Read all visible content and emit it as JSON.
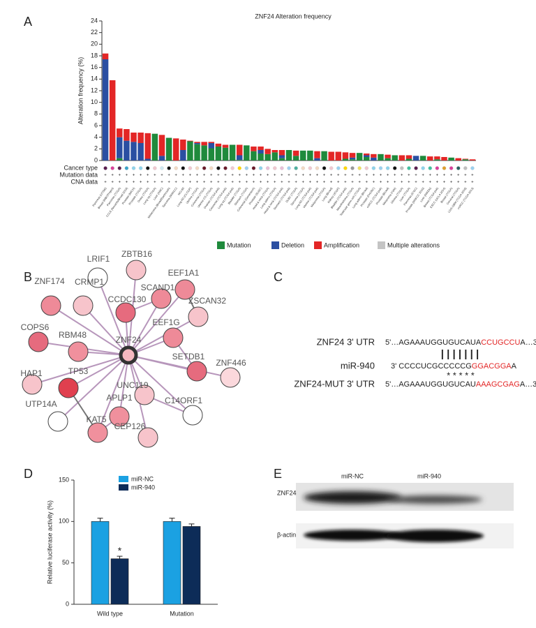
{
  "panels": [
    "A",
    "B",
    "C",
    "D",
    "E"
  ],
  "chart_data": [
    {
      "type": "stacked-bar",
      "title": "ZNF24 Alteration frequency",
      "y_label": "Alteration frequency (%)",
      "row_labels": [
        "Cancer type",
        "Mutation data",
        "CNA data"
      ],
      "categories": [
        "Pancreas (UTSW)",
        "Breast (MBCProject)",
        "Pancreas (TCGA)",
        "CCLE (Novartis/Broad 2019)",
        "Prostate (MICH)",
        "Prostate (TCGA)",
        "Ovary (TCGA)",
        "Lung sq (TCGA)",
        "Liver (AMC)",
        "Melanoma (Broad/Dartmouth)",
        "Sarcoma (MSKCC)",
        "NCI-60",
        "Lung AD (CLCGP)",
        "Uterine (TCGA)",
        "Colorectal (TCGA)",
        "Uterine CS (TCGA)",
        "Ovarian (TCGA pub)",
        "Colorectal (TCGA pub)",
        "Lung sq (TCGA pub)",
        "Bladder (TCGA)",
        "Stomach (TCGA)",
        "Colorectal (Genentech)",
        "Prostate (SU2C)",
        "Head & neck (TCGA)",
        "Lung adeno (TCGA)",
        "Head & neck (TCGA pub)",
        "Stomach (TCGA pub)",
        "DLBC (TCGA)",
        "Sarcoma (TCGA)",
        "Lung AD (TCGA pub)",
        "Uterine (TCGA pub)",
        "Melanoma (TCGA)",
        "Lung (Broad)",
        "Kidney (JCGP)",
        "Bladder (TCGA pub)",
        "Mesothelioma (TCGA)",
        "Testicular germ cell (TCGA)",
        "Lung adeno (Broad)",
        "Prostate (FHCRC)",
        "ccRCC (TCGA pub)",
        "Prostate (Broad)",
        "Melanoma (Yale)",
        "Glioma (TCGA)",
        "Liver (TCGA)",
        "Pancreas (ICGC)",
        "Prostate (MSKCC 2010)",
        "Liver (RIKEN)",
        "Breast (TCGA pub)",
        "ESCC (UCLA 2014)",
        "Breast (TCGA)",
        "Cervical (TCGA)",
        "LGG-GBM (TCGA 2016)",
        "ccRCC (TCGA 2013)"
      ],
      "cancer_type_colors": [
        "#5a1f4f",
        "#d9419a",
        "#5a1f4f",
        "#3aa3c9",
        "#8fd3ea",
        "#8fd3ea",
        "#111111",
        "#f0c8d0",
        "#cfe8f0",
        "#111111",
        "#f2d9c4",
        "#111111",
        "#f0c8d0",
        "#f2d9c4",
        "#6a1a2a",
        "#f2d9c4",
        "#111111",
        "#6a1a2a",
        "#f0c8d0",
        "#ffd700",
        "#a0d0f0",
        "#6a1a2a",
        "#8fd3ea",
        "#e8c0d8",
        "#f0c8d0",
        "#e8c0d8",
        "#a0d0f0",
        "#50b0a0",
        "#f2d9c4",
        "#f0c8d0",
        "#f2d9c4",
        "#111111",
        "#f0c8d0",
        "#9bd1ef",
        "#ffd700",
        "#999999",
        "#f0e060",
        "#f0c8d0",
        "#8fd3ea",
        "#9bd1ef",
        "#8fd3ea",
        "#111111",
        "#c0c0c0",
        "#40c0a0",
        "#5a1f4f",
        "#8fd3ea",
        "#40c0a0",
        "#d9419a",
        "#e0a030",
        "#d9419a",
        "#2a6060",
        "#c0c0c0",
        "#9bd1ef"
      ],
      "mutation_data": [
        "+",
        "+",
        "+",
        "+",
        "+",
        "+",
        "+",
        "+",
        "+",
        "+",
        "+",
        "+",
        "+",
        "+",
        "+",
        "+",
        "+",
        "+",
        "+",
        "+",
        "+",
        "+",
        "+",
        "+",
        "+",
        "+",
        "+",
        "+",
        "+",
        "+",
        "+",
        "+",
        "+",
        "+",
        "+",
        "+",
        "+",
        "+",
        "+",
        "+",
        "+",
        "+",
        "+",
        "+",
        "+",
        "+",
        "+",
        "+",
        "+",
        "+",
        "+",
        "+",
        "+"
      ],
      "cna_data": [
        "+",
        "+",
        "+",
        "+",
        "+",
        "+",
        "+",
        "+",
        "+",
        "+",
        "+",
        "+",
        "+",
        "+",
        "+",
        "+",
        "+",
        "+",
        "+",
        "+",
        "+",
        "+",
        "+",
        "+",
        "+",
        "+",
        "+",
        "+",
        "+",
        "+",
        "+",
        "+",
        "+",
        "+",
        "+",
        "+",
        "+",
        "+",
        "+",
        "+",
        "+",
        "+",
        "+",
        "+",
        "+",
        "+",
        "+",
        "+",
        "+",
        "+",
        "+",
        "+",
        "+"
      ],
      "series": [
        {
          "name": "Mutation",
          "color": "#1f8a3c",
          "values": [
            0,
            0,
            0.4,
            0,
            0,
            0,
            0,
            4.6,
            0,
            3.9,
            0,
            0,
            3.3,
            2.8,
            2.6,
            2.1,
            2.4,
            2.2,
            2.7,
            0.1,
            2.6,
            1.6,
            1.2,
            1.1,
            1.4,
            0.4,
            1.8,
            0.8,
            1.7,
            1.7,
            0,
            1.6,
            0,
            0,
            0.3,
            0.2,
            1.3,
            0.6,
            0,
            1.1,
            0.4,
            0.9,
            0,
            0.3,
            0,
            0.8,
            0,
            0.2,
            0,
            0.5,
            0,
            0.2,
            0
          ]
        },
        {
          "name": "Deletion",
          "color": "#2b4fa2",
          "values": [
            17.4,
            0,
            3.6,
            3.4,
            3.2,
            3.0,
            0.3,
            0,
            0.8,
            0,
            0,
            1.8,
            0,
            0.2,
            0,
            0.9,
            0,
            0,
            0,
            0.8,
            0,
            0,
            0.6,
            0,
            0,
            0.5,
            0,
            0,
            0,
            0,
            0.4,
            0,
            0,
            0,
            0,
            0.3,
            0,
            0.3,
            0.5,
            0,
            0,
            0,
            0,
            0,
            0.8,
            0,
            0,
            0,
            0,
            0,
            0,
            0,
            0
          ]
        },
        {
          "name": "Amplification",
          "color": "#e32626",
          "values": [
            1.0,
            13.8,
            1.5,
            2.0,
            1.6,
            1.8,
            4.4,
            0,
            3.6,
            0,
            3.8,
            1.8,
            0.1,
            0.2,
            0.6,
            0.2,
            0.5,
            0.5,
            0,
            1.8,
            0,
            0.8,
            0.6,
            0.9,
            0.4,
            0.9,
            0,
            0.9,
            0,
            0,
            1.2,
            0,
            1.5,
            1.5,
            1.1,
            0.8,
            0,
            0.3,
            0.6,
            0,
            0.6,
            0,
            0.9,
            0.6,
            0,
            0,
            0.7,
            0.5,
            0.6,
            0,
            0.4,
            0.1,
            0.2
          ]
        },
        {
          "name": "Multiple alterations",
          "color": "#c4c4c4",
          "values": [
            0,
            0,
            0,
            0,
            0,
            0,
            0,
            0,
            0,
            0,
            0,
            0,
            0,
            0,
            0,
            0,
            0,
            0,
            0,
            0,
            0,
            0,
            0,
            0,
            0,
            0,
            0,
            0,
            0,
            0,
            0,
            0,
            0,
            0,
            0,
            0,
            0,
            0,
            0,
            0,
            0,
            0,
            0,
            0,
            0,
            0,
            0,
            0,
            0,
            0,
            0,
            0,
            0
          ]
        }
      ],
      "ylim": [
        0,
        24
      ],
      "yticks": [
        0,
        2,
        4,
        6,
        8,
        10,
        12,
        14,
        16,
        18,
        20,
        22,
        24
      ]
    },
    {
      "type": "bar",
      "y_label": "Relative luciferase activity (%)",
      "categories": [
        "Wild type",
        "Mutation"
      ],
      "series": [
        {
          "name": "miR-NC",
          "color": "#1ba1e2",
          "values": [
            100,
            100
          ],
          "errors": [
            4,
            4
          ]
        },
        {
          "name": "miR-940",
          "color": "#0d2c58",
          "values": [
            55,
            94
          ],
          "errors": [
            3,
            3
          ]
        }
      ],
      "annotation": "*",
      "ylim": [
        0,
        150
      ],
      "yticks": [
        0,
        50,
        100,
        150
      ]
    }
  ],
  "network": {
    "hub": {
      "label": "ZNF24",
      "color": "#f6b8c0"
    },
    "nodes": [
      {
        "label": "LRIF1",
        "color": "#ffffff"
      },
      {
        "label": "ZBTB16",
        "color": "#f7c4cb"
      },
      {
        "label": "EEF1A1",
        "color": "#ee8a98"
      },
      {
        "label": "ZNF174",
        "color": "#ee8a98"
      },
      {
        "label": "CRMP1",
        "color": "#f7c4cb"
      },
      {
        "label": "CCDC130",
        "color": "#e66b7e"
      },
      {
        "label": "SCAND1",
        "color": "#ee8a98"
      },
      {
        "label": "ZSCAN32",
        "color": "#f7c4cb"
      },
      {
        "label": "EEF1G",
        "color": "#ee8a98"
      },
      {
        "label": "COPS6",
        "color": "#e66b7e"
      },
      {
        "label": "RBM48",
        "color": "#f0909d"
      },
      {
        "label": "SETDB1",
        "color": "#e66b7e"
      },
      {
        "label": "ZNF446",
        "color": "#fbd8dc"
      },
      {
        "label": "HAP1",
        "color": "#f7c4cb"
      },
      {
        "label": "TP53",
        "color": "#e0404f"
      },
      {
        "label": "UNC119",
        "color": "#f7c4cb"
      },
      {
        "label": "APLP1",
        "color": "#f0909d"
      },
      {
        "label": "C14ORF1",
        "color": "#ffffff"
      },
      {
        "label": "UTP14A",
        "color": "#ffffff"
      },
      {
        "label": "KAT5",
        "color": "#f0909d"
      },
      {
        "label": "CEP126",
        "color": "#f7c4cb"
      }
    ]
  },
  "sequences": {
    "rows": [
      {
        "label": "ZNF24 3' UTR",
        "before": "5'…AGAAAUGGUGUCAUA",
        "highlight": "CCUGCCU",
        "after": "A…3'"
      },
      {
        "label": "miR-940",
        "before": "3'  CCCCUCGCCCCCG",
        "highlight": "GGACGGA",
        "after": "A"
      },
      {
        "label": "ZNF24-MUT 3' UTR",
        "before": "5'…AGAAAUGGUGUCAU",
        "highlight": "AAAGCGAG",
        "after": "A…3'"
      }
    ],
    "pairing": "| | | | | | |",
    "stars": "* * * * *"
  },
  "western_blot": {
    "lanes": [
      "miR-NC",
      "miR-940"
    ],
    "proteins": [
      "ZNF24",
      "β-actin"
    ]
  }
}
